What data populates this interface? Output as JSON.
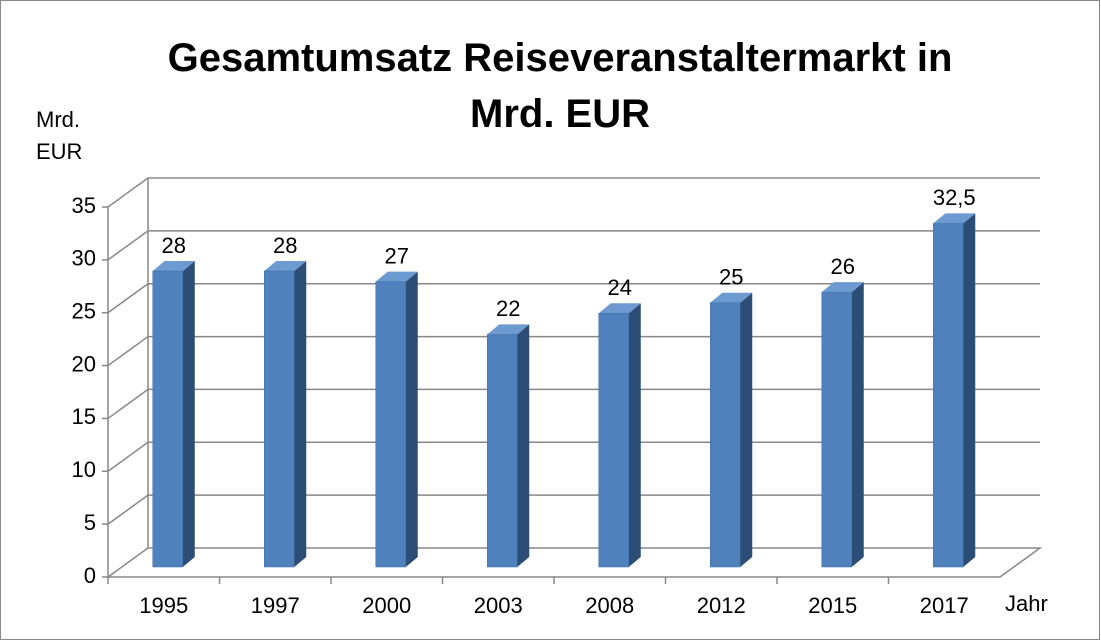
{
  "chart_data": {
    "type": "bar3d",
    "title": "Gesamtumsatz Reiseveranstaltermarkt in Mrd. EUR",
    "y_label": "Mrd. EUR",
    "x_label": "Jahr",
    "categories": [
      "1995",
      "1997",
      "2000",
      "2003",
      "2008",
      "2012",
      "2015",
      "2017"
    ],
    "values": [
      28,
      28,
      27,
      22,
      24,
      25,
      26,
      32.5
    ],
    "value_labels": [
      "28",
      "28",
      "27",
      "22",
      "24",
      "25",
      "26",
      "32,5"
    ],
    "color": "#4f81bd",
    "ylim": [
      0,
      35
    ],
    "yticks": [
      0,
      5,
      10,
      15,
      20,
      25,
      30,
      35
    ],
    "grid": true
  }
}
